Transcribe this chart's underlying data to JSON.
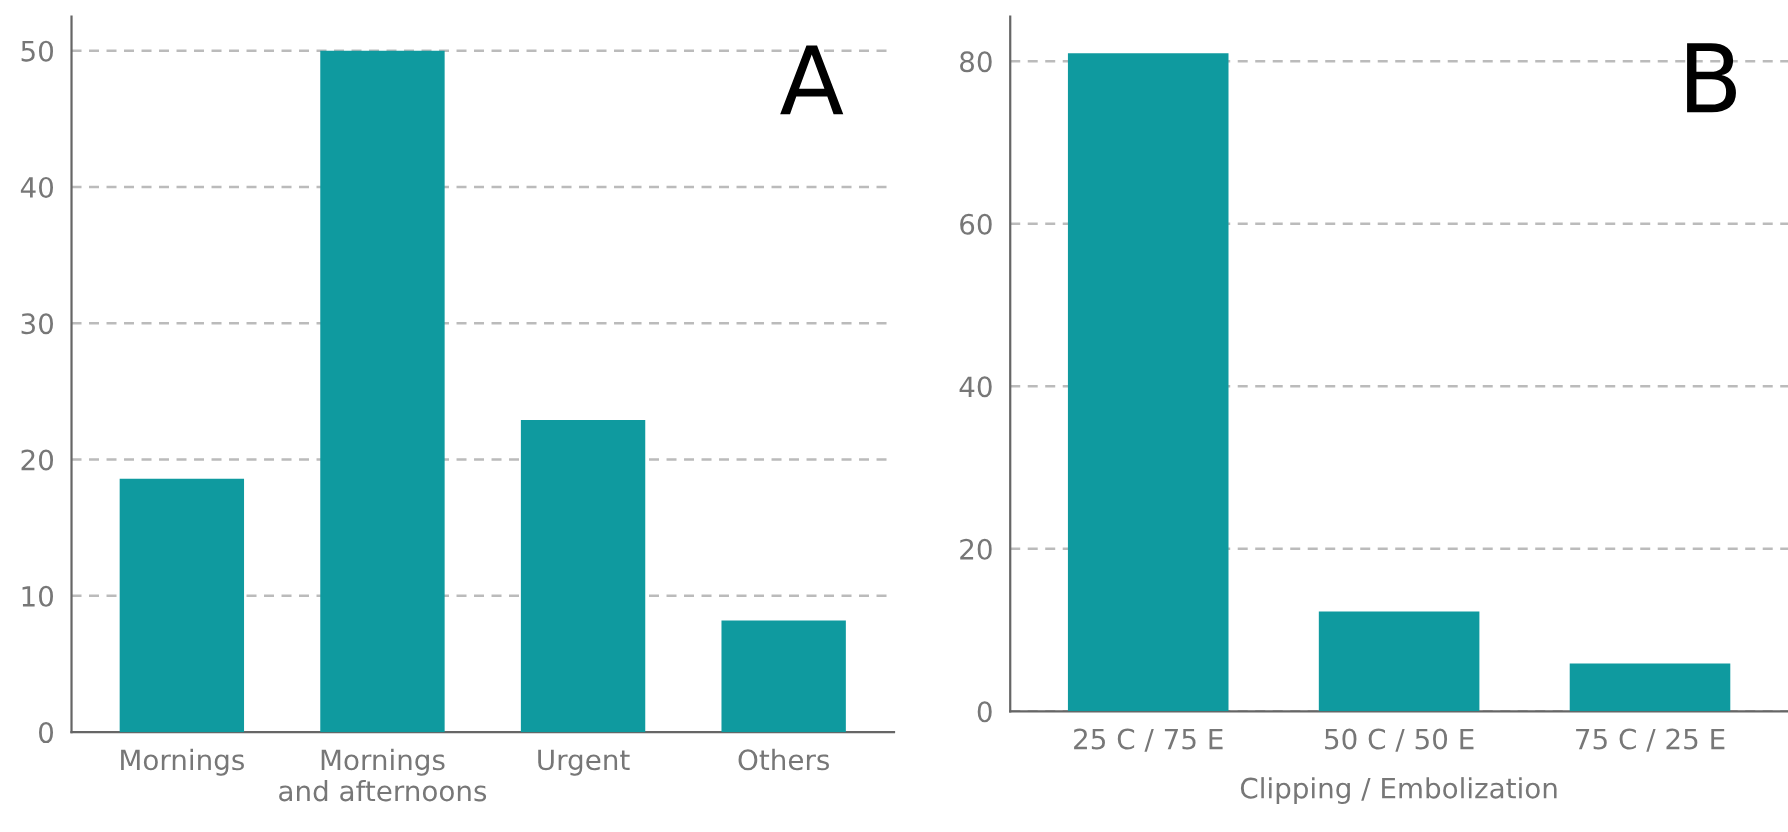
{
  "chart_data": [
    {
      "type": "bar",
      "categories": [
        "Mornings",
        "Mornings\nand afternoons",
        "Urgent",
        "Others"
      ],
      "values": [
        18.6,
        50,
        22.9,
        8.2
      ],
      "color": "#0f9a9f",
      "ylim": [
        0,
        52.5
      ],
      "yticks": [
        0,
        10,
        20,
        30,
        40,
        50
      ],
      "grid": "y",
      "annotations": [
        "A"
      ]
    },
    {
      "type": "bar",
      "categories": [
        "25 C / 75 E",
        "50 C / 50 E",
        "75 C / 25 E"
      ],
      "values": [
        81,
        12.3,
        5.9
      ],
      "color": "#0f9a9f",
      "xlabel": "Clipping / Embolization",
      "ylim": [
        0,
        85.5
      ],
      "yticks": [
        0,
        20,
        40,
        60,
        80
      ],
      "grid": "y",
      "annotations": [
        "B"
      ]
    }
  ]
}
